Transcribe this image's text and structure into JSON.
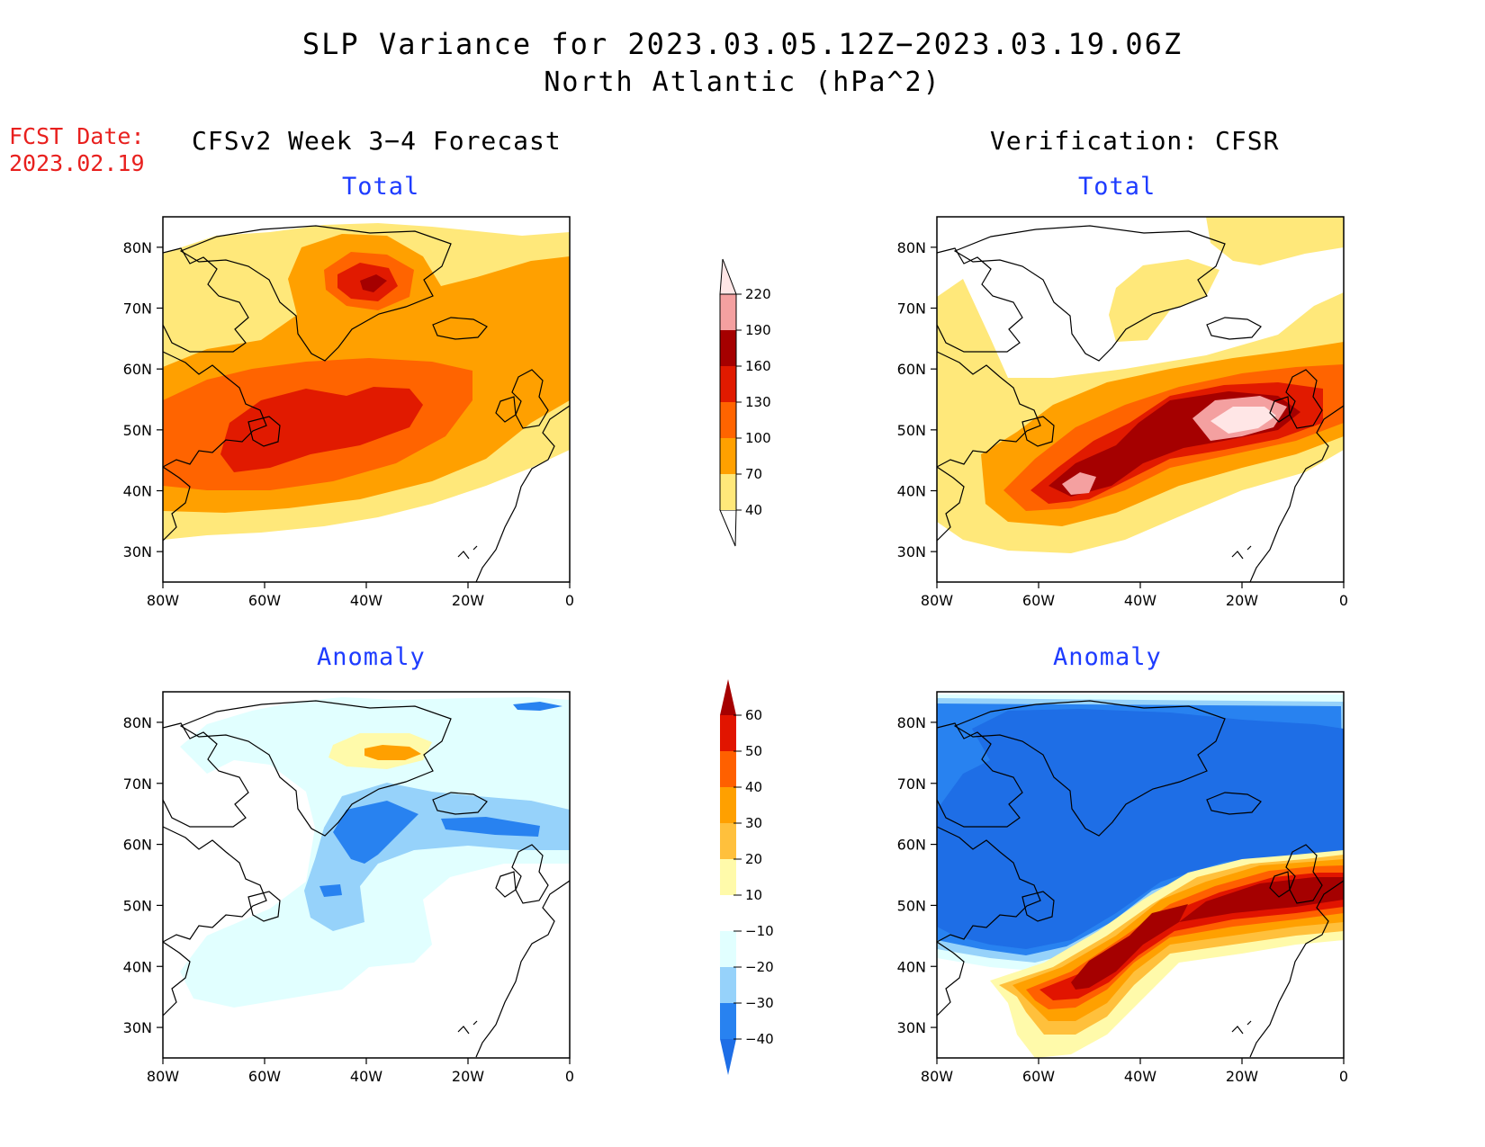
{
  "title_line1": "SLP Variance for 2023.03.05.12Z−2023.03.19.06Z",
  "title_line2": "North Atlantic (hPa^2)",
  "fcst_label": "FCST Date:",
  "fcst_date": "2023.02.19",
  "left_column_title": "CFSv2 Week 3−4 Forecast",
  "right_column_title": "Verification: CFSR",
  "panels": {
    "forecast_total": {
      "title": "Total"
    },
    "verification_total": {
      "title": "Total"
    },
    "forecast_anomaly": {
      "title": "Anomaly"
    },
    "verification_anomaly": {
      "title": "Anomaly"
    }
  },
  "axes": {
    "lat_ticks": [
      "80N",
      "70N",
      "60N",
      "50N",
      "40N",
      "30N"
    ],
    "lon_ticks": [
      "80W",
      "60W",
      "40W",
      "20W",
      "0"
    ],
    "lat_range": [
      25,
      85
    ],
    "lon_range": [
      -80,
      0
    ]
  },
  "total_colorbar": {
    "labels": [
      "40",
      "70",
      "100",
      "130",
      "160",
      "190",
      "220"
    ],
    "colors": [
      "#ffe87a",
      "#ffa000",
      "#ff6400",
      "#e11a00",
      "#a50000",
      "#f4a0a0",
      "#ffe6e6"
    ]
  },
  "anomaly_colorbar": {
    "labels": [
      "−40",
      "−30",
      "−20",
      "−10",
      "10",
      "20",
      "30",
      "40",
      "50",
      "60"
    ],
    "colors": [
      "#1e6ee6",
      "#2882f0",
      "#96d2fa",
      "#e1ffff",
      "#ffffff",
      "#fffaaa",
      "#ffc03c",
      "#ffa000",
      "#ff6000",
      "#e11400",
      "#a50000"
    ]
  }
}
